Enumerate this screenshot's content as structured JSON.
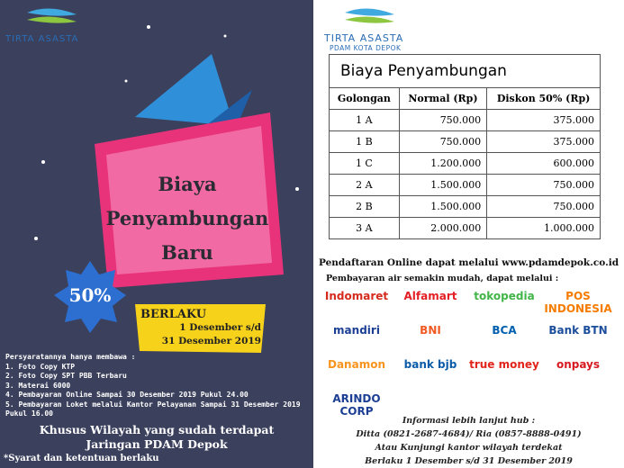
{
  "left": {
    "brand": "TIRTA ASASTA",
    "banner": [
      "Biaya",
      "Penyambungan",
      "Baru"
    ],
    "discount": "50%",
    "validity": {
      "label": "BERLAKU",
      "lines": [
        "1 Desember s/d",
        "31 Desember 2019"
      ]
    },
    "requirements": {
      "heading": "Persyaratannya hanya membawa :",
      "items": [
        "1. Foto Copy KTP",
        "2. Foto Copy SPT PBB Terbaru",
        "3. Materai 6000",
        "4. Pembayaran Online Sampai 30 Desember 2019 Pukul 24.00",
        "5. Pembayaran Loket melalui Kantor Pelayanan Sampai 31 Desember 2019 Pukul 16.00"
      ]
    },
    "footer": [
      "Khusus Wilayah yang sudah terdapat",
      "Jaringan PDAM Depok"
    ],
    "note": "*Syarat dan ketentuan berlaku"
  },
  "right": {
    "brand": "TIRTA ASASTA",
    "subbrand": "PDAM KOTA DEPOK",
    "table": {
      "title": "Biaya Penyambungan",
      "headers": [
        "Golongan",
        "Normal (Rp)",
        "Diskon 50% (Rp)"
      ],
      "rows": [
        [
          "1 A",
          "750.000",
          "375.000"
        ],
        [
          "1 B",
          "750.000",
          "375.000"
        ],
        [
          "1 C",
          "1.200.000",
          "600.000"
        ],
        [
          "2 A",
          "1.500.000",
          "750.000"
        ],
        [
          "2 B",
          "1.500.000",
          "750.000"
        ],
        [
          "3 A",
          "2.000.000",
          "1.000.000"
        ]
      ]
    },
    "online": "Pendaftaran Online dapat melalui www.pdamdepok.co.id",
    "payment_heading": "Pembayaran air semakin mudah, dapat melalui :",
    "payment_logos": [
      "Indomaret",
      "Alfamart",
      "tokopedia",
      "POS INDONESIA",
      "mandiri",
      "BNI",
      "BCA",
      "Bank BTN",
      "Danamon",
      "bank bjb",
      "true money",
      "onpays",
      "ARINDO CORP"
    ],
    "info": [
      "Informasi lebih lanjut hub :",
      "Ditta (0821-2687-4684)/ Ria (0857-8888-0491)",
      "Atau Kunjungi kantor wilayah terdekat",
      "Berlaku 1 Desember s/d 31 Desember 2019"
    ]
  }
}
